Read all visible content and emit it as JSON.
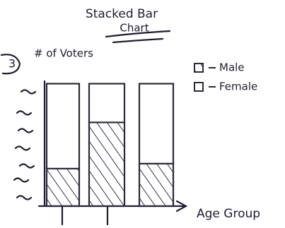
{
  "chart_data": {
    "type": "stacked-bar",
    "title": [
      "Stacked Bar",
      "Chart"
    ],
    "annotation": "3",
    "ylabel": "# of Voters",
    "xlabel": "Age Group",
    "categories": [
      null,
      null,
      null
    ],
    "series": [
      {
        "name": "Male",
        "color": "#2a2a3a",
        "hatch": true,
        "values": [
          30,
          67,
          34
        ]
      },
      {
        "name": "Female",
        "color": "#2a2a3a",
        "hatch": false,
        "values": [
          68,
          31,
          64
        ]
      }
    ],
    "ylim": [
      0,
      100
    ]
  }
}
